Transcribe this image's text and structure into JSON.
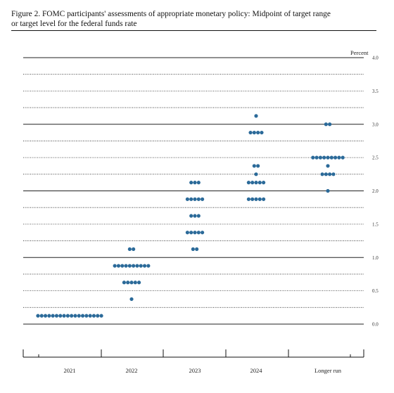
{
  "figure": {
    "title_line1": "Figure 2.  FOMC participants' assessments of appropriate monetary policy:  Midpoint of target range",
    "title_line2": "or target level for the federal funds rate"
  },
  "chart_data": {
    "type": "scatter",
    "subtype": "dot plot",
    "unit_label": "Percent",
    "categories": [
      "2021",
      "2022",
      "2023",
      "2024",
      "Longer run"
    ],
    "ylim": [
      0,
      4.0
    ],
    "y_ticks": [
      0.0,
      0.5,
      1.0,
      1.5,
      2.0,
      2.5,
      3.0,
      3.5,
      4.0
    ],
    "y_tick_labels": [
      "0.0",
      "0.5",
      "1.0",
      "1.5",
      "2.0",
      "2.5",
      "3.0",
      "3.5",
      "4.0"
    ],
    "gridlines": "dotted every 0.25, solid every 1.0",
    "dot_color": "#2b6a99",
    "series": [
      {
        "values": [
          {
            "category": "2021",
            "y": 0.125,
            "count": 18
          },
          {
            "category": "2022",
            "y": 0.375,
            "count": 1
          },
          {
            "category": "2022",
            "y": 0.625,
            "count": 5
          },
          {
            "category": "2022",
            "y": 0.875,
            "count": 10
          },
          {
            "category": "2022",
            "y": 1.125,
            "count": 2
          },
          {
            "category": "2023",
            "y": 1.125,
            "count": 2
          },
          {
            "category": "2023",
            "y": 1.375,
            "count": 5
          },
          {
            "category": "2023",
            "y": 1.625,
            "count": 3
          },
          {
            "category": "2023",
            "y": 1.875,
            "count": 5
          },
          {
            "category": "2023",
            "y": 2.125,
            "count": 3
          },
          {
            "category": "2024",
            "y": 1.875,
            "count": 5
          },
          {
            "category": "2024",
            "y": 2.125,
            "count": 5
          },
          {
            "category": "2024",
            "y": 2.25,
            "count": 1
          },
          {
            "category": "2024",
            "y": 2.375,
            "count": 2
          },
          {
            "category": "2024",
            "y": 2.875,
            "count": 4
          },
          {
            "category": "2024",
            "y": 3.125,
            "count": 1
          },
          {
            "category": "Longer run",
            "y": 2.0,
            "count": 1
          },
          {
            "category": "Longer run",
            "y": 2.25,
            "count": 4
          },
          {
            "category": "Longer run",
            "y": 2.375,
            "count": 1
          },
          {
            "category": "Longer run",
            "y": 2.5,
            "count": 9
          },
          {
            "category": "Longer run",
            "y": 3.0,
            "count": 2
          }
        ]
      }
    ]
  }
}
